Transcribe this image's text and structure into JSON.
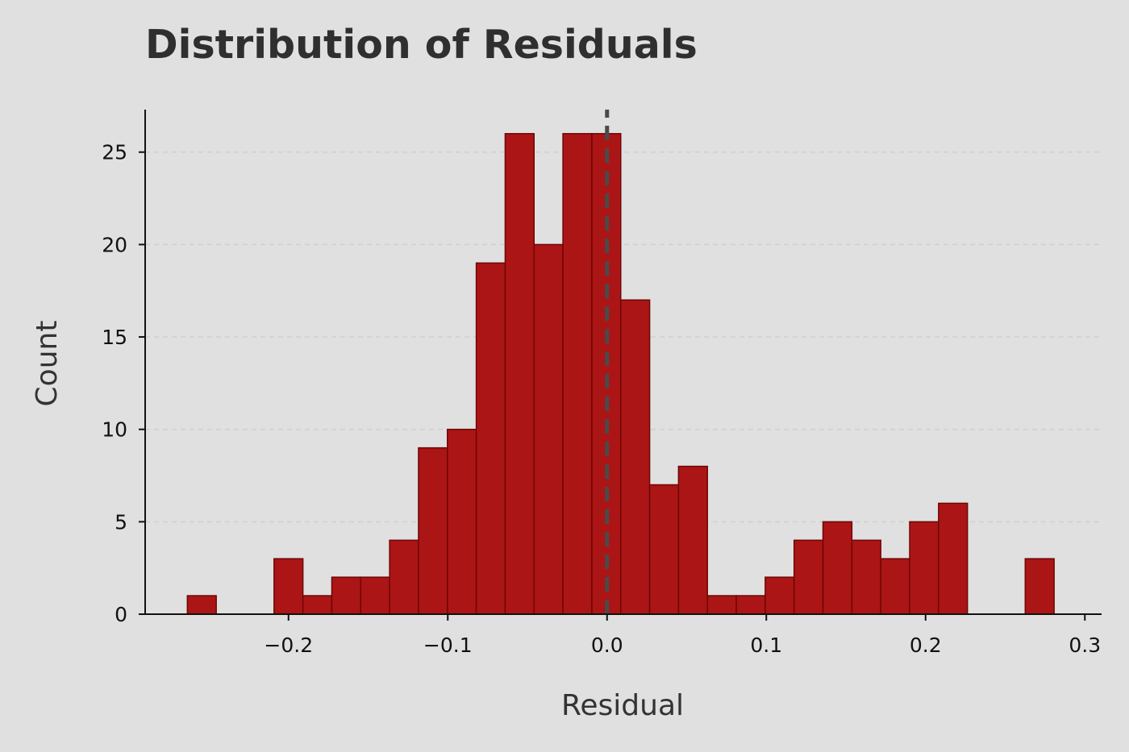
{
  "chart_data": {
    "type": "bar",
    "subtype": "histogram",
    "title": "Distribution of Residuals",
    "xlabel": "Residual",
    "ylabel": "Count",
    "xlim": [
      -0.29,
      0.3105
    ],
    "ylim": [
      0,
      27.3
    ],
    "bin_start": -0.2635,
    "bin_width": 0.01814,
    "counts": [
      1,
      0,
      0,
      3,
      1,
      2,
      2,
      4,
      9,
      10,
      19,
      26,
      20,
      26,
      26,
      17,
      7,
      8,
      1,
      1,
      2,
      4,
      5,
      4,
      3,
      5,
      6,
      0,
      0,
      3
    ],
    "x_ticks": [
      -0.2,
      -0.1,
      0.0,
      0.1,
      0.2,
      0.3
    ],
    "x_tick_labels": [
      "−0.2",
      "−0.1",
      "0.0",
      "0.1",
      "0.2",
      "0.3"
    ],
    "y_ticks": [
      0,
      5,
      10,
      15,
      20,
      25
    ],
    "y_tick_labels": [
      "0",
      "5",
      "10",
      "15",
      "20",
      "25"
    ],
    "reference_line": {
      "x": 0.0,
      "style": "dashed"
    },
    "grid": "y",
    "colors": {
      "background": "#e0e0e0",
      "bar_fill": "#ac1515",
      "bar_edge": "#6e0606",
      "reference_line": "#4a4a4a",
      "grid": "#cfcfcf",
      "axis": "#111111"
    }
  }
}
